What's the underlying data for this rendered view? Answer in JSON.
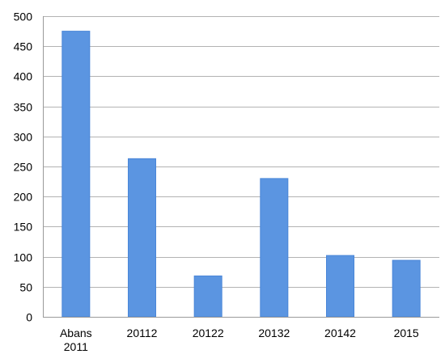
{
  "chart_data": {
    "type": "bar",
    "title": "",
    "xlabel": "",
    "ylabel": "",
    "categories": [
      [
        "Abans",
        "2011"
      ],
      [
        "20112"
      ],
      [
        "20122"
      ],
      [
        "20132"
      ],
      [
        "20142"
      ],
      [
        "2015"
      ]
    ],
    "values": [
      475,
      263,
      68,
      230,
      102,
      94
    ],
    "ylim": [
      0,
      500
    ],
    "yticks": [
      0,
      50,
      100,
      150,
      200,
      250,
      300,
      350,
      400,
      450,
      500
    ],
    "grid": true,
    "legend": "none",
    "colors": {
      "bar": "#5b95e1",
      "grid": "#b3b3b3"
    }
  }
}
